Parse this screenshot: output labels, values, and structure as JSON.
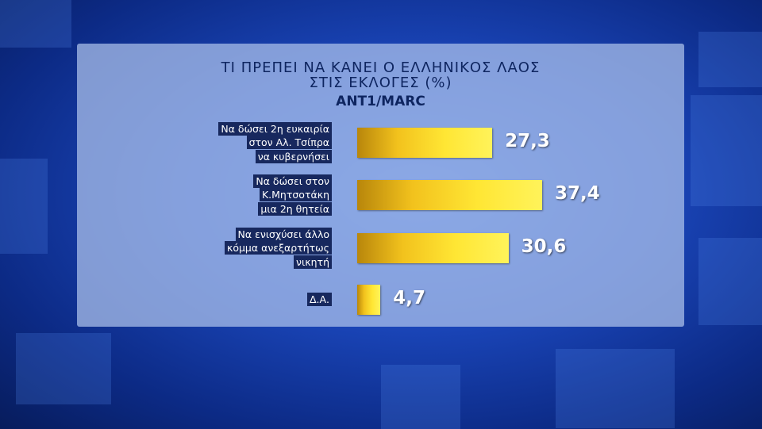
{
  "chart_data": {
    "type": "bar",
    "orientation": "horizontal",
    "title": "ΤΙ ΠΡΕΠΕΙ ΝΑ ΚΑΝΕΙ Ο ΕΛΛΗΝΙΚΟΣ ΛΑΟΣ\nΣΤΙΣ ΕΚΛΟΓΕΣ (%)",
    "subtitle": "ANT1/MARC",
    "categories": [
      "Να δώσει 2η ευκαιρία\nστον Αλ. Τσίπρα\nνα κυβερνήσει",
      "Να δώσει στον\nΚ.Μητσοτάκη\nμια 2η θητεία",
      "Να ενισχύσει άλλο\nκόμμα ανεξαρτήτως\nνικητή",
      "Δ.Α."
    ],
    "values": [
      27.3,
      37.4,
      30.6,
      4.7
    ],
    "value_labels": [
      "27,3",
      "37,4",
      "30,6",
      "4,7"
    ],
    "color": "#f2c21d"
  }
}
